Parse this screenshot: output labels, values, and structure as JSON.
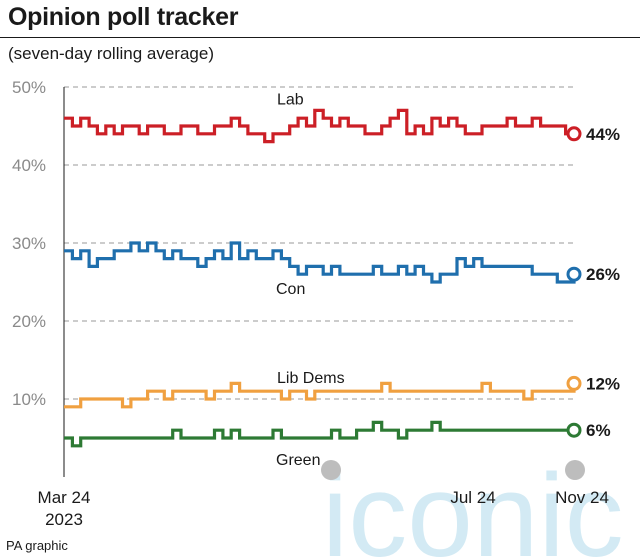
{
  "title": "Opinion poll tracker",
  "subtitle": "(seven-day rolling average)",
  "source": "PA graphic",
  "watermark": "iconic",
  "chart_data": {
    "type": "line",
    "title": "Opinion poll tracker",
    "subtitle": "(seven-day rolling average)",
    "ylim": [
      0,
      50
    ],
    "yticks": [
      10,
      20,
      30,
      40,
      50
    ],
    "ytick_labels": [
      "10%",
      "20%",
      "30%",
      "40%",
      "50%"
    ],
    "xlim": [
      0,
      20
    ],
    "xticks": [
      0,
      16,
      20
    ],
    "xtick_labels": [
      "Mar 24\n2023",
      "Jul 24",
      "Nov 24"
    ],
    "grid": true,
    "series": [
      {
        "name": "Lab",
        "color": "#cc1f26",
        "end_label": "44%",
        "values": [
          46,
          45,
          46,
          45,
          44,
          45,
          44,
          45,
          45,
          44,
          45,
          45,
          44,
          44,
          45,
          45,
          44,
          44,
          45,
          45,
          46,
          45,
          44,
          44,
          43,
          44,
          44,
          45,
          46,
          45,
          47,
          46,
          45,
          46,
          45,
          45,
          44,
          44,
          45,
          46,
          47,
          44,
          45,
          44,
          46,
          45,
          46,
          45,
          44,
          44,
          45,
          45,
          45,
          46,
          45,
          45,
          46,
          45,
          45,
          45,
          44,
          44
        ]
      },
      {
        "name": "Con",
        "color": "#1f6fad",
        "end_label": "26%",
        "values": [
          29,
          28,
          29,
          27,
          28,
          28,
          29,
          29,
          30,
          29,
          30,
          29,
          28,
          29,
          28,
          28,
          27,
          28,
          29,
          28,
          30,
          28,
          29,
          28,
          28,
          29,
          28,
          27,
          26,
          27,
          27,
          26,
          27,
          26,
          26,
          26,
          26,
          27,
          26,
          26,
          27,
          26,
          27,
          26,
          25,
          26,
          26,
          28,
          27,
          28,
          27,
          27,
          27,
          27,
          27,
          27,
          26,
          26,
          26,
          25,
          25,
          26
        ]
      },
      {
        "name": "Lib Dems",
        "color": "#f0a040",
        "end_label": "12%",
        "values": [
          9,
          9,
          10,
          10,
          10,
          10,
          10,
          9,
          10,
          10,
          11,
          11,
          10,
          11,
          11,
          11,
          11,
          10,
          11,
          11,
          12,
          11,
          11,
          11,
          11,
          11,
          10,
          11,
          11,
          10,
          11,
          11,
          11,
          11,
          11,
          11,
          11,
          11,
          12,
          11,
          11,
          11,
          11,
          11,
          11,
          11,
          11,
          11,
          11,
          11,
          12,
          11,
          11,
          11,
          11,
          10,
          11,
          11,
          11,
          11,
          11,
          12
        ]
      },
      {
        "name": "Green",
        "color": "#2d7a34",
        "end_label": "6%",
        "values": [
          5,
          4,
          5,
          5,
          5,
          5,
          5,
          5,
          5,
          5,
          5,
          5,
          5,
          6,
          5,
          5,
          5,
          5,
          6,
          5,
          6,
          5,
          5,
          5,
          5,
          6,
          5,
          5,
          5,
          5,
          5,
          5,
          6,
          5,
          5,
          6,
          6,
          7,
          6,
          6,
          5,
          6,
          6,
          6,
          7,
          6,
          6,
          6,
          6,
          6,
          6,
          6,
          6,
          6,
          6,
          6,
          6,
          6,
          6,
          6,
          6,
          6
        ]
      }
    ]
  }
}
